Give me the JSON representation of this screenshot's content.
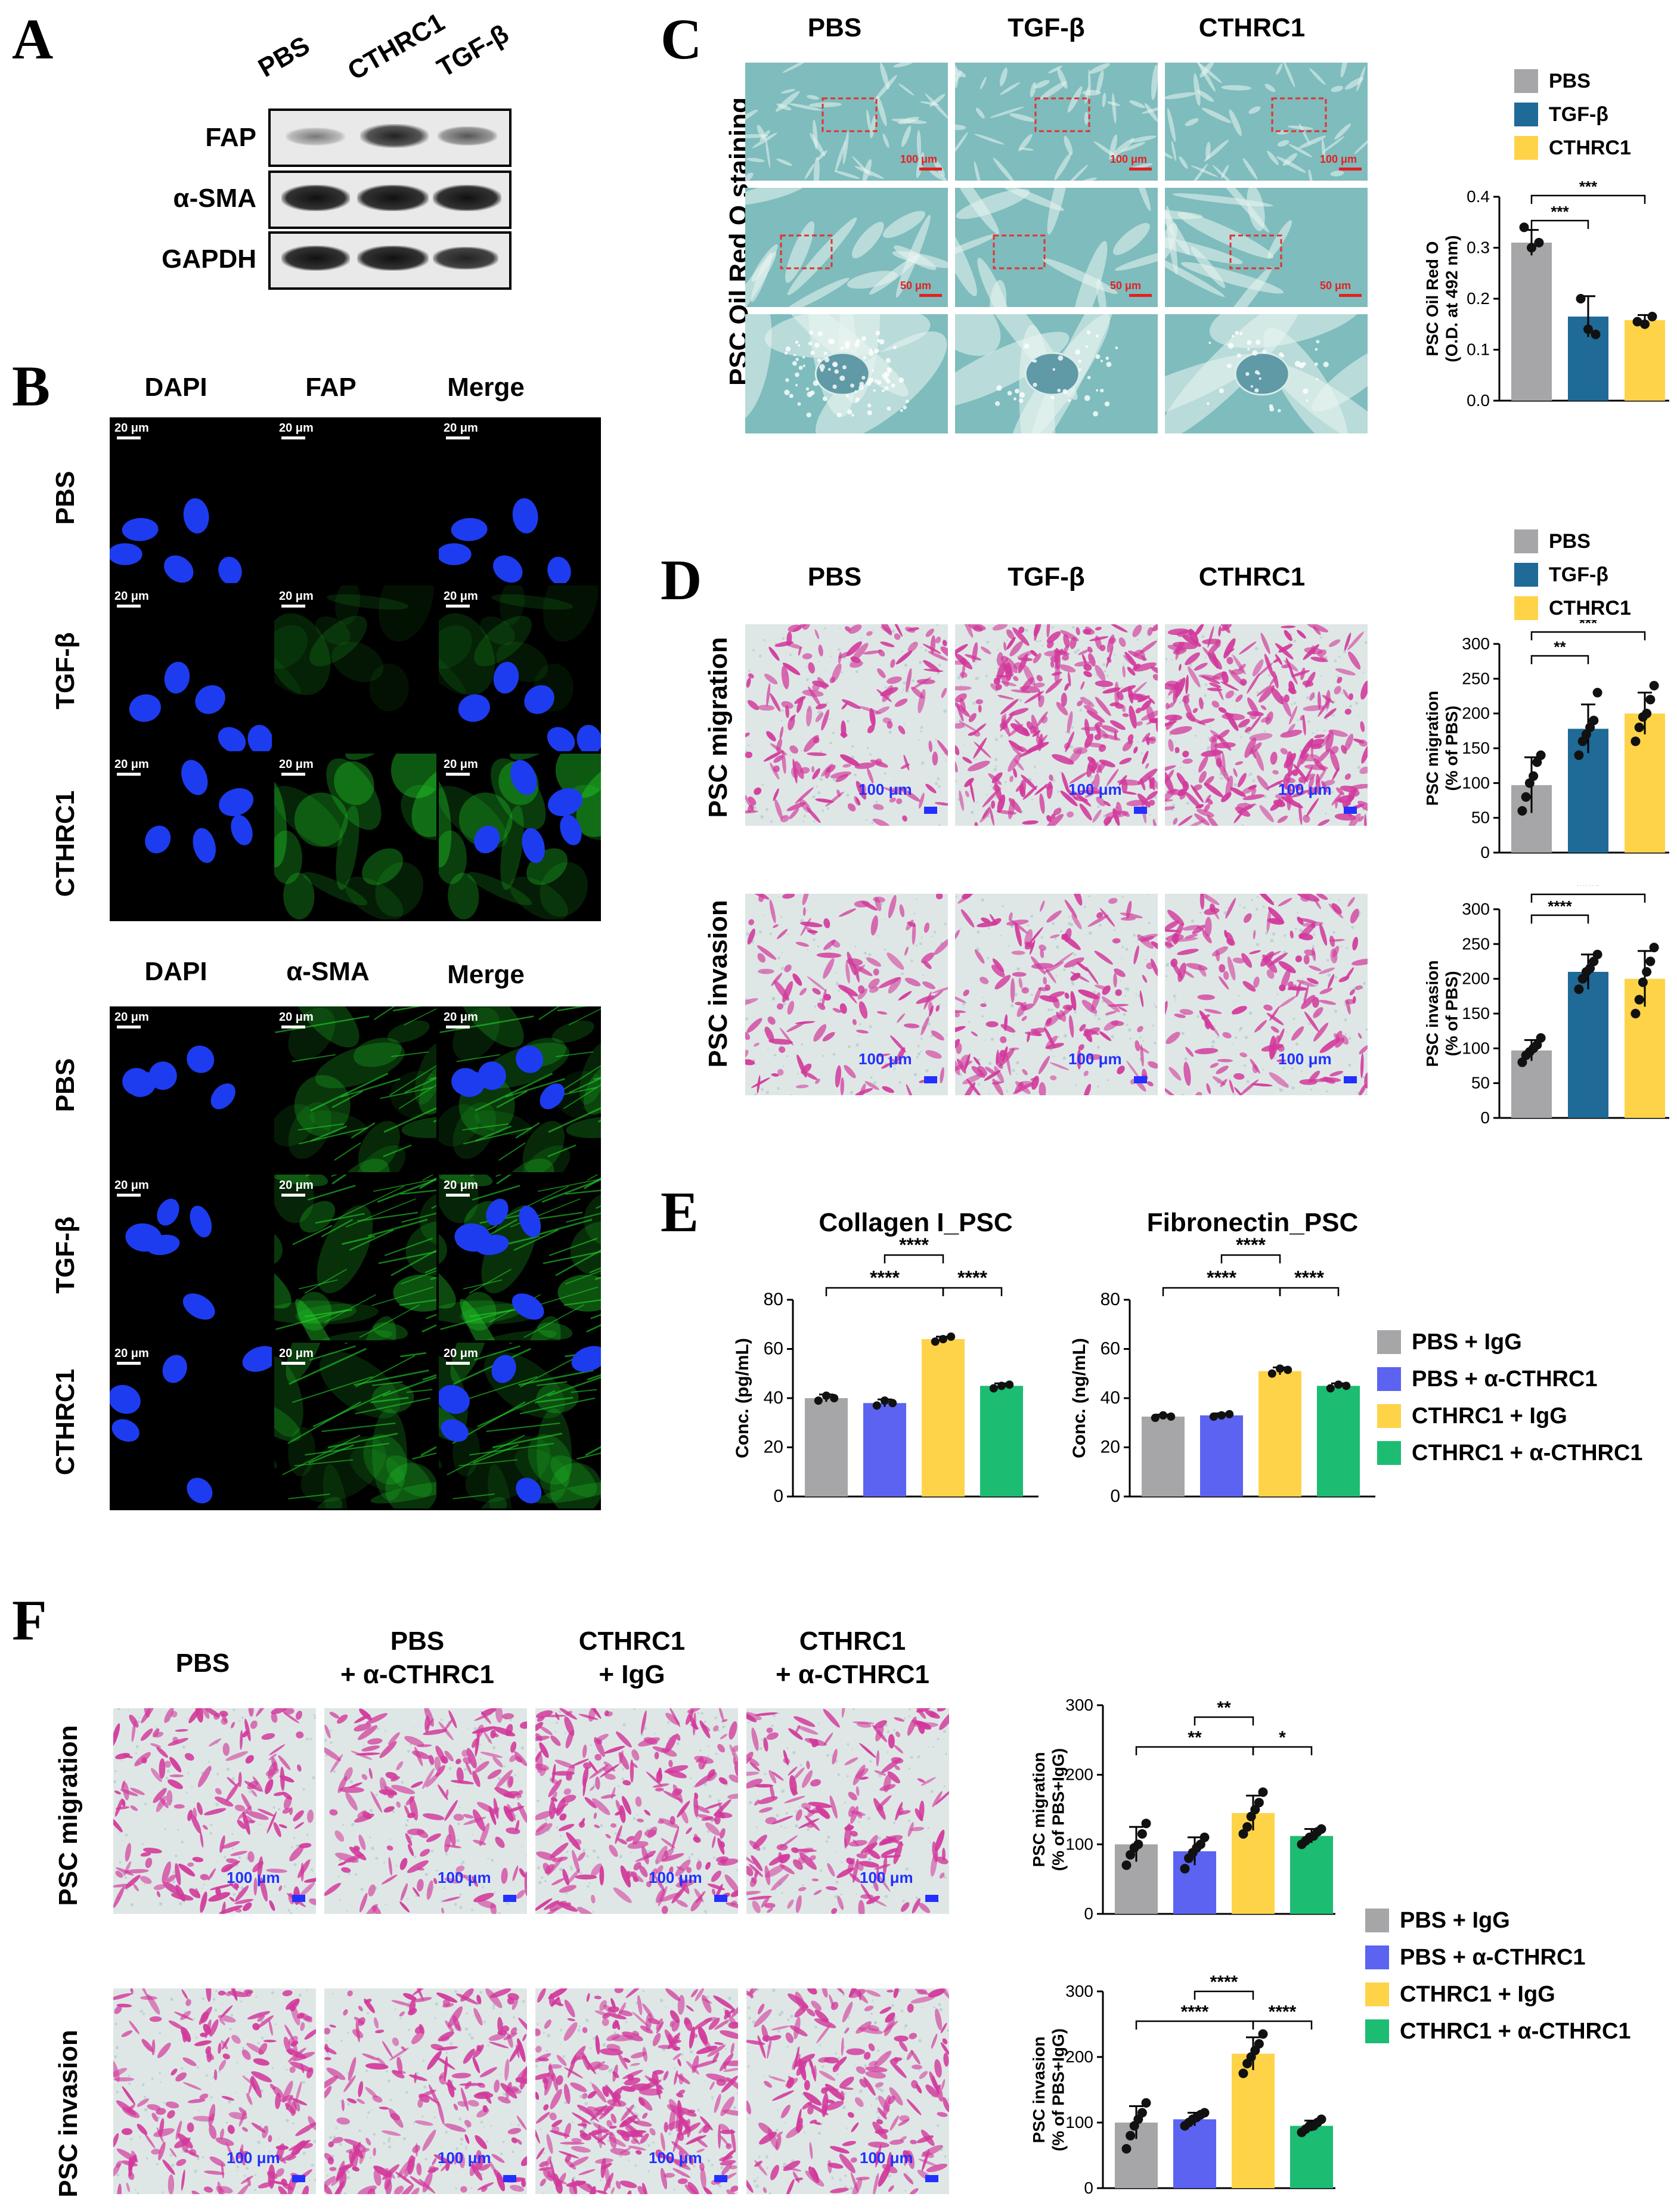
{
  "panels": {
    "A": "A",
    "B": "B",
    "C": "C",
    "D": "D",
    "E": "E",
    "F": "F"
  },
  "colors": {
    "pbs_gray": "#a6a6a8",
    "tgfb_blue": "#1f6a97",
    "cthrc1_yellow": "#fed348",
    "anti_blue": "#5b63f0",
    "anti_green": "#1cbc72",
    "oil_bg": "#7ebcbd",
    "stain_pink": "#d2389b",
    "dapi": "#1d3cf0",
    "gfp": "#22d32a"
  },
  "panelA": {
    "lanes": [
      "PBS",
      "CTHRC1",
      "TGF-β"
    ],
    "rows": [
      "FAP",
      "α-SMA",
      "GAPDH"
    ]
  },
  "panelB": {
    "cols1": [
      "DAPI",
      "FAP",
      "Merge"
    ],
    "cols2": [
      "DAPI",
      "α-SMA",
      "Merge"
    ],
    "rows": [
      "PBS",
      "TGF-β",
      "CTHRC1"
    ],
    "scale": "20 μm"
  },
  "panelC": {
    "cols": [
      "PBS",
      "TGF-β",
      "CTHRC1"
    ],
    "side": "PSC Oil Red O staining",
    "scales": [
      "100 μm",
      "50 μm"
    ],
    "legend": [
      "PBS",
      "TGF-β",
      "CTHRC1"
    ]
  },
  "panelD": {
    "cols": [
      "PBS",
      "TGF-β",
      "CTHRC1"
    ],
    "rows": [
      "PSC migration",
      "PSC invasion"
    ],
    "scale": "100 μm",
    "legend": [
      "PBS",
      "TGF-β",
      "CTHRC1"
    ]
  },
  "panelE": {
    "legend": [
      "PBS + IgG",
      "PBS + α-CTHRC1",
      "CTHRC1 + IgG",
      "CTHRC1 + α-CTHRC1"
    ]
  },
  "panelF": {
    "cols": [
      [
        "PBS",
        ""
      ],
      [
        "PBS",
        "+ α-CTHRC1"
      ],
      [
        "CTHRC1",
        "+ IgG"
      ],
      [
        "CTHRC1",
        "+ α-CTHRC1"
      ]
    ],
    "rows": [
      "PSC migration",
      "PSC invasion"
    ],
    "scale": "100 μm",
    "legend": [
      "PBS + IgG",
      "PBS + α-CTHRC1",
      "CTHRC1 + IgG",
      "CTHRC1 + α-CTHRC1"
    ]
  },
  "chart_data": [
    {
      "id": "C",
      "type": "bar",
      "categories": [
        "PBS",
        "TGF-β",
        "CTHRC1"
      ],
      "values": [
        0.31,
        0.165,
        0.158
      ],
      "points": [
        [
          0.34,
          0.3,
          0.31
        ],
        [
          0.2,
          0.14,
          0.13
        ],
        [
          0.155,
          0.15,
          0.165
        ]
      ],
      "errors": [
        0.025,
        0.04,
        0.01
      ],
      "ylabel": "PSC Oil Red O\n(O.D. at 492 nm)",
      "ylim": [
        0,
        0.4
      ],
      "ticks": [
        0.0,
        0.1,
        0.2,
        0.3,
        0.4
      ],
      "tickfmt": 1,
      "colors": [
        "#a6a6a8",
        "#1f6a97",
        "#fed348"
      ],
      "sig": [
        {
          "a": 0,
          "b": 1,
          "label": "***",
          "level": 1
        },
        {
          "a": 0,
          "b": 2,
          "label": "***",
          "level": 2
        }
      ]
    },
    {
      "id": "D1",
      "type": "bar",
      "categories": [
        "PBS",
        "TGF-β",
        "CTHRC1"
      ],
      "values": [
        97,
        178,
        200
      ],
      "points": [
        [
          60,
          80,
          100,
          110,
          130,
          140
        ],
        [
          140,
          160,
          170,
          180,
          190,
          230
        ],
        [
          160,
          180,
          195,
          200,
          220,
          240
        ]
      ],
      "errors": [
        40,
        35,
        30
      ],
      "ylabel": "PSC migration\n(% of PBS)",
      "ylim": [
        0,
        300
      ],
      "ticks": [
        0,
        50,
        100,
        150,
        200,
        250,
        300
      ],
      "tickfmt": 0,
      "colors": [
        "#a6a6a8",
        "#1f6a97",
        "#fed348"
      ],
      "sig": [
        {
          "a": 0,
          "b": 1,
          "label": "**",
          "level": 1
        },
        {
          "a": 0,
          "b": 2,
          "label": "***",
          "level": 2
        }
      ]
    },
    {
      "id": "D2",
      "type": "bar",
      "categories": [
        "PBS",
        "TGF-β",
        "CTHRC1"
      ],
      "values": [
        97,
        210,
        200
      ],
      "points": [
        [
          80,
          90,
          95,
          100,
          105,
          115
        ],
        [
          185,
          200,
          210,
          215,
          225,
          235
        ],
        [
          150,
          170,
          195,
          210,
          225,
          245
        ]
      ],
      "errors": [
        15,
        25,
        40
      ],
      "ylabel": "PSC invasion\n(% of PBS)",
      "ylim": [
        0,
        300
      ],
      "ticks": [
        0,
        50,
        100,
        150,
        200,
        250,
        300
      ],
      "tickfmt": 0,
      "colors": [
        "#a6a6a8",
        "#1f6a97",
        "#fed348"
      ],
      "sig": [
        {
          "a": 0,
          "b": 1,
          "label": "****",
          "level": 1
        },
        {
          "a": 0,
          "b": 2,
          "label": "****",
          "level": 2
        }
      ]
    },
    {
      "id": "E1",
      "type": "bar",
      "title": "Collagen I_PSC",
      "categories": [
        "PBS + IgG",
        "PBS + α-CTHRC1",
        "CTHRC1 + IgG",
        "CTHRC1 + α-CTHRC1"
      ],
      "values": [
        40,
        38,
        64,
        45
      ],
      "points": [
        [
          39,
          41,
          40
        ],
        [
          37,
          39,
          38
        ],
        [
          63,
          64,
          65
        ],
        [
          44,
          45,
          45.5
        ]
      ],
      "errors": [
        1.5,
        1.5,
        1,
        1
      ],
      "ylabel": "Conc. (pg/mL)",
      "ylim": [
        0,
        80
      ],
      "ticks": [
        0,
        20,
        40,
        60,
        80
      ],
      "tickfmt": 0,
      "colors": [
        "#a6a6a8",
        "#5b63f0",
        "#fed348",
        "#1cbc72"
      ],
      "sig": [
        {
          "a": 0,
          "b": 2,
          "label": "****",
          "level": 1
        },
        {
          "a": 2,
          "b": 3,
          "label": "****",
          "level": 1
        },
        {
          "a": 1,
          "b": 2,
          "label": "****",
          "level": 2
        }
      ]
    },
    {
      "id": "E2",
      "type": "bar",
      "title": "Fibronectin_PSC",
      "categories": [
        "PBS + IgG",
        "PBS + α-CTHRC1",
        "CTHRC1 + IgG",
        "CTHRC1 + α-CTHRC1"
      ],
      "values": [
        32.5,
        33,
        51,
        45
      ],
      "points": [
        [
          32,
          33,
          32.5
        ],
        [
          32.5,
          33,
          33.5
        ],
        [
          50,
          52,
          51.5
        ],
        [
          44,
          45.5,
          45
        ]
      ],
      "errors": [
        0.8,
        0.8,
        1.5,
        1
      ],
      "ylabel": "Conc. (ng/mL)",
      "ylim": [
        0,
        80
      ],
      "ticks": [
        0,
        20,
        40,
        60,
        80
      ],
      "tickfmt": 0,
      "colors": [
        "#a6a6a8",
        "#5b63f0",
        "#fed348",
        "#1cbc72"
      ],
      "sig": [
        {
          "a": 0,
          "b": 2,
          "label": "****",
          "level": 1
        },
        {
          "a": 2,
          "b": 3,
          "label": "****",
          "level": 1
        },
        {
          "a": 1,
          "b": 2,
          "label": "****",
          "level": 2
        }
      ]
    },
    {
      "id": "F1",
      "type": "bar",
      "categories": [
        "PBS + IgG",
        "PBS + α-CTHRC1",
        "CTHRC1 + IgG",
        "CTHRC1 + α-CTHRC1"
      ],
      "values": [
        100,
        90,
        145,
        112
      ],
      "points": [
        [
          70,
          85,
          95,
          100,
          115,
          130
        ],
        [
          65,
          80,
          88,
          95,
          100,
          110
        ],
        [
          115,
          125,
          140,
          150,
          160,
          175
        ],
        [
          100,
          105,
          110,
          112,
          118,
          122
        ]
      ],
      "errors": [
        25,
        20,
        25,
        10
      ],
      "ylabel": "PSC migration\n(% of PBS+IgG)",
      "ylim": [
        0,
        300
      ],
      "ticks": [
        0,
        100,
        200,
        300
      ],
      "tickfmt": 0,
      "colors": [
        "#a6a6a8",
        "#5b63f0",
        "#fed348",
        "#1cbc72"
      ],
      "sig": [
        {
          "a": 0,
          "b": 2,
          "label": "**",
          "level": 1
        },
        {
          "a": 2,
          "b": 3,
          "label": "*",
          "level": 1
        },
        {
          "a": 1,
          "b": 2,
          "label": "**",
          "level": 2
        }
      ]
    },
    {
      "id": "F2",
      "type": "bar",
      "categories": [
        "PBS + IgG",
        "PBS + α-CTHRC1",
        "CTHRC1 + IgG",
        "CTHRC1 + α-CTHRC1"
      ],
      "values": [
        100,
        105,
        205,
        95
      ],
      "points": [
        [
          60,
          80,
          95,
          105,
          115,
          130
        ],
        [
          95,
          100,
          105,
          108,
          112,
          115
        ],
        [
          175,
          190,
          200,
          210,
          220,
          235
        ],
        [
          85,
          90,
          95,
          95,
          100,
          105
        ]
      ],
      "errors": [
        25,
        10,
        25,
        8
      ],
      "ylabel": "PSC invasion\n(% of PBS+IgG)",
      "ylim": [
        0,
        300
      ],
      "ticks": [
        0,
        100,
        200,
        300
      ],
      "tickfmt": 0,
      "colors": [
        "#a6a6a8",
        "#5b63f0",
        "#fed348",
        "#1cbc72"
      ],
      "sig": [
        {
          "a": 0,
          "b": 2,
          "label": "****",
          "level": 1
        },
        {
          "a": 2,
          "b": 3,
          "label": "****",
          "level": 1
        },
        {
          "a": 1,
          "b": 2,
          "label": "****",
          "level": 2
        }
      ]
    }
  ]
}
